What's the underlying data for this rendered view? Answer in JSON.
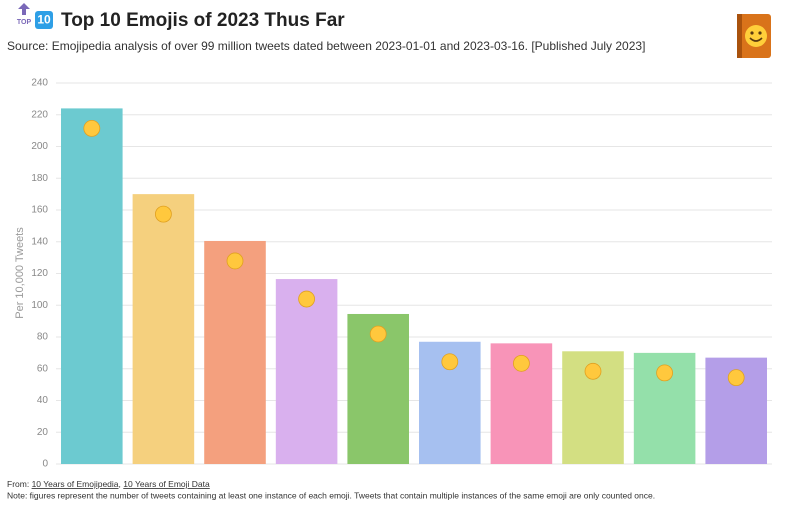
{
  "chart_data": {
    "type": "bar",
    "badge_top": "TOP",
    "badge_number": "10",
    "title": "Top 10 Emojis of 2023 Thus Far",
    "subtitle": "Source: Emojipedia analysis of over 99 million tweets dated between 2023-01-01 and 2023-03-16. [Published July 2023]",
    "y_label": "Per 10,000 Tweets",
    "categories": [
      null,
      null,
      null,
      null,
      null,
      null,
      null,
      null,
      null,
      null
    ],
    "values": [
      224,
      170,
      140.5,
      116.5,
      94.5,
      77,
      76,
      71,
      70,
      67
    ],
    "colors": [
      "#6ccad0",
      "#f5d07e",
      "#f4a07e",
      "#d9b0ee",
      "#8ac66a",
      "#a6c0f0",
      "#f894b8",
      "#d3df82",
      "#94e0aa",
      "#b49ee8"
    ],
    "ylim": [
      0,
      240
    ],
    "yticks": [
      0,
      20,
      40,
      60,
      80,
      100,
      120,
      140,
      160,
      180,
      200,
      220,
      240
    ],
    "grid": true,
    "footer_from": "From:",
    "footer_links": [
      "10 Years of Emojipedia",
      "10 Years of Emoji Data"
    ],
    "footer_note": "Note: figures represent the number of tweets containing at least one instance of each emoji. Tweets that contain multiple instances of the same emoji are only counted once."
  }
}
